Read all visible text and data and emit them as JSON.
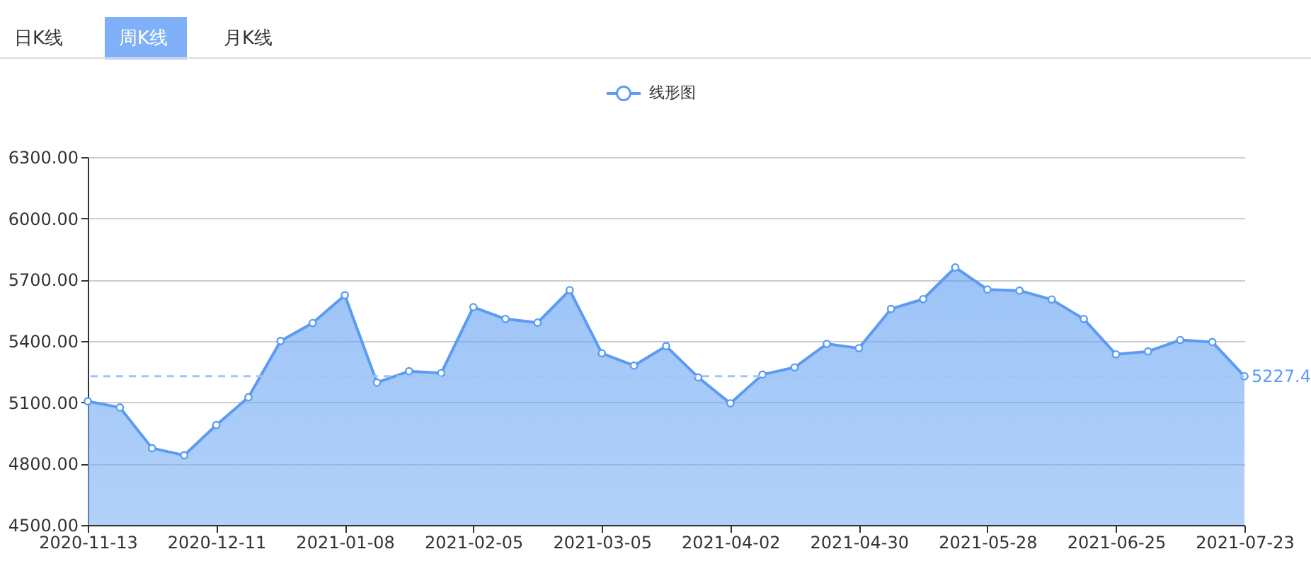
{
  "chart_data": {
    "type": "area",
    "annotations": [
      "日K线",
      "周K线",
      "月K线"
    ],
    "x": [
      "2020-11-13",
      "2020-11-20",
      "2020-11-27",
      "2020-12-04",
      "2020-12-11",
      "2020-12-18",
      "2020-12-25",
      "2021-01-01",
      "2021-01-08",
      "2021-01-15",
      "2021-01-22",
      "2021-01-29",
      "2021-02-05",
      "2021-02-12",
      "2021-02-19",
      "2021-02-26",
      "2021-03-05",
      "2021-03-12",
      "2021-03-19",
      "2021-03-26",
      "2021-04-02",
      "2021-04-09",
      "2021-04-16",
      "2021-04-23",
      "2021-04-30",
      "2021-05-07",
      "2021-05-14",
      "2021-05-21",
      "2021-05-28",
      "2021-06-04",
      "2021-06-11",
      "2021-06-18",
      "2021-06-25",
      "2021-07-02",
      "2021-07-09",
      "2021-07-16",
      "2021-07-23"
    ],
    "series": [
      {
        "name": "线形图",
        "color": "#5b9cf2",
        "values": [
          5105,
          5075,
          4876,
          4841,
          4989,
          5125,
          5400,
          5488,
          5624,
          5197,
          5252,
          5243,
          5566,
          5508,
          5490,
          5649,
          5340,
          5280,
          5375,
          5222,
          5095,
          5236,
          5271,
          5386,
          5365,
          5557,
          5605,
          5760,
          5652,
          5647,
          5603,
          5508,
          5335,
          5349,
          5405,
          5395,
          5227.4
        ]
      }
    ],
    "xlim": [
      "2020-11-13",
      "2021-07-23"
    ],
    "xticks": [
      "2020-11-13",
      "2020-12-11",
      "2021-01-08",
      "2021-02-05",
      "2021-03-05",
      "2021-04-02",
      "2021-04-30",
      "2021-05-28",
      "2021-06-25",
      "2021-07-23"
    ],
    "ylim": [
      4500,
      6300
    ],
    "yticks": [
      {
        "value": 4500,
        "label": "4500.00"
      },
      {
        "value": 4800,
        "label": "4800.00"
      },
      {
        "value": 5100,
        "label": "5100.00"
      },
      {
        "value": 5400,
        "label": "5400.00"
      },
      {
        "value": 5700,
        "label": "5700.00"
      },
      {
        "value": 6000,
        "label": "6000.00"
      },
      {
        "value": 6300,
        "label": "6300.00"
      }
    ],
    "ref_lines": [
      {
        "axis": "y",
        "value": 5227.4,
        "label": "5227.4",
        "color": "#9fc3f7",
        "line_style": "dashed"
      }
    ],
    "grid": "y",
    "legend": "top",
    "marker": "circle",
    "line_style": "solid"
  }
}
